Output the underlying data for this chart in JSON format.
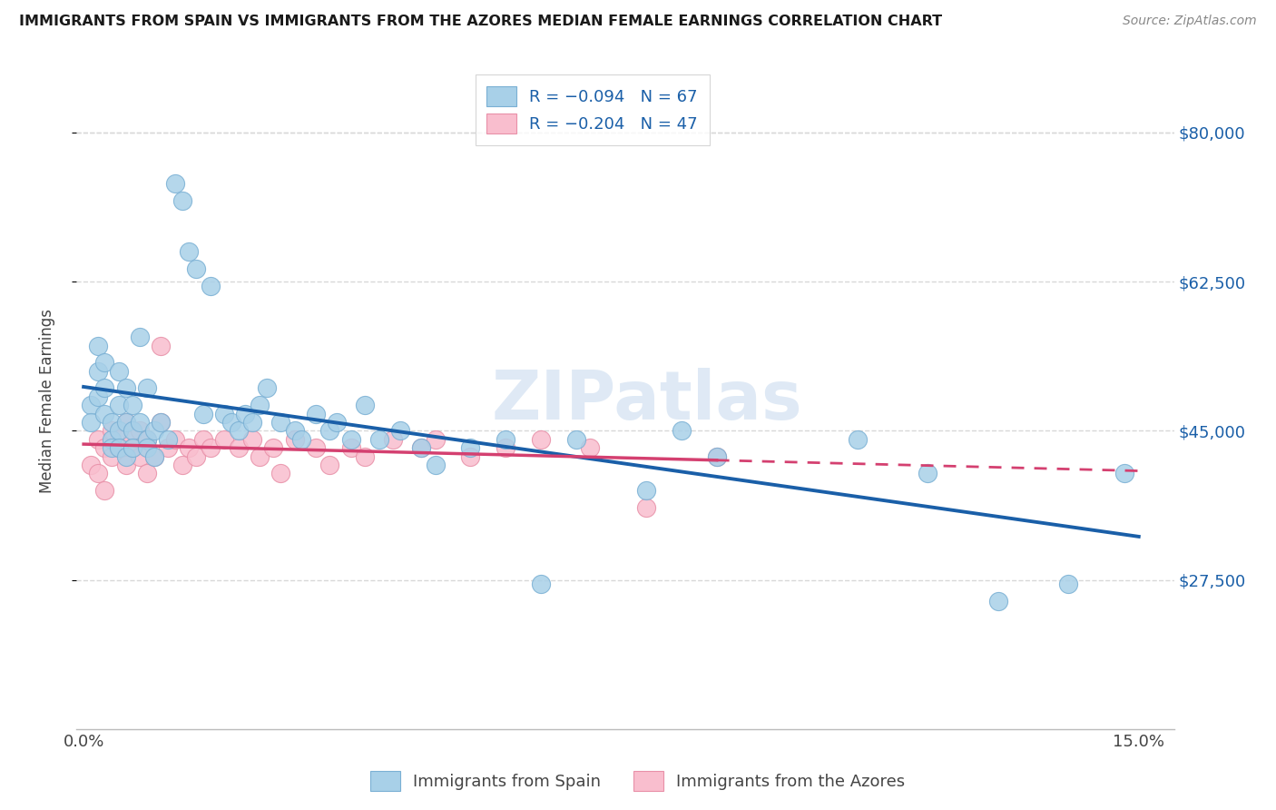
{
  "title": "IMMIGRANTS FROM SPAIN VS IMMIGRANTS FROM THE AZORES MEDIAN FEMALE EARNINGS CORRELATION CHART",
  "source": "Source: ZipAtlas.com",
  "ylabel": "Median Female Earnings",
  "xlim": [
    -0.001,
    0.155
  ],
  "ylim": [
    10000,
    87000
  ],
  "ytick_vals": [
    27500,
    45000,
    62500,
    80000
  ],
  "xtick_vals": [
    0.0,
    0.025,
    0.05,
    0.075,
    0.1,
    0.125,
    0.15
  ],
  "xtick_labels": [
    "0.0%",
    "",
    "",
    "",
    "",
    "",
    "15.0%"
  ],
  "series1_color": "#a8d0e8",
  "series1_edge": "#7ab0d4",
  "series2_color": "#f9bece",
  "series2_edge": "#e890a8",
  "trendline1_color": "#1a5fa8",
  "trendline2_color": "#d44070",
  "legend1_text": "R = −0.094   N = 67",
  "legend2_text": "R = −0.204   N = 47",
  "bottom_legend1": "Immigrants from Spain",
  "bottom_legend2": "Immigrants from the Azores",
  "watermark": "ZIPatlas",
  "grid_color": "#d8d8d8",
  "background_color": "#ffffff",
  "yaxis_label_color": "#1a5fa8",
  "title_color": "#1a1a1a",
  "source_color": "#888888",
  "spain_x": [
    0.001,
    0.001,
    0.002,
    0.002,
    0.002,
    0.003,
    0.003,
    0.003,
    0.004,
    0.004,
    0.004,
    0.005,
    0.005,
    0.005,
    0.005,
    0.006,
    0.006,
    0.006,
    0.007,
    0.007,
    0.007,
    0.008,
    0.008,
    0.009,
    0.009,
    0.009,
    0.01,
    0.01,
    0.011,
    0.012,
    0.013,
    0.014,
    0.015,
    0.016,
    0.017,
    0.018,
    0.02,
    0.021,
    0.022,
    0.023,
    0.024,
    0.025,
    0.026,
    0.028,
    0.03,
    0.031,
    0.033,
    0.035,
    0.036,
    0.038,
    0.04,
    0.042,
    0.045,
    0.048,
    0.05,
    0.055,
    0.06,
    0.065,
    0.07,
    0.08,
    0.085,
    0.09,
    0.11,
    0.12,
    0.13,
    0.14,
    0.148
  ],
  "spain_y": [
    48000,
    46000,
    52000,
    49000,
    55000,
    47000,
    50000,
    53000,
    44000,
    46000,
    43000,
    48000,
    45000,
    52000,
    43000,
    46000,
    50000,
    42000,
    45000,
    48000,
    43000,
    46000,
    56000,
    44000,
    50000,
    43000,
    45000,
    42000,
    46000,
    44000,
    74000,
    72000,
    66000,
    64000,
    47000,
    62000,
    47000,
    46000,
    45000,
    47000,
    46000,
    48000,
    50000,
    46000,
    45000,
    44000,
    47000,
    45000,
    46000,
    44000,
    48000,
    44000,
    45000,
    43000,
    41000,
    43000,
    44000,
    27000,
    44000,
    38000,
    45000,
    42000,
    44000,
    40000,
    25000,
    27000,
    40000
  ],
  "azores_x": [
    0.001,
    0.002,
    0.002,
    0.003,
    0.003,
    0.004,
    0.004,
    0.005,
    0.005,
    0.006,
    0.006,
    0.007,
    0.007,
    0.008,
    0.008,
    0.009,
    0.009,
    0.01,
    0.011,
    0.011,
    0.012,
    0.013,
    0.014,
    0.015,
    0.016,
    0.017,
    0.018,
    0.02,
    0.022,
    0.024,
    0.025,
    0.027,
    0.028,
    0.03,
    0.033,
    0.035,
    0.038,
    0.04,
    0.044,
    0.048,
    0.05,
    0.055,
    0.06,
    0.065,
    0.072,
    0.08,
    0.09
  ],
  "azores_y": [
    41000,
    44000,
    40000,
    43000,
    38000,
    45000,
    42000,
    44000,
    43000,
    46000,
    41000,
    44000,
    43000,
    42000,
    45000,
    40000,
    44000,
    42000,
    46000,
    55000,
    43000,
    44000,
    41000,
    43000,
    42000,
    44000,
    43000,
    44000,
    43000,
    44000,
    42000,
    43000,
    40000,
    44000,
    43000,
    41000,
    43000,
    42000,
    44000,
    43000,
    44000,
    42000,
    43000,
    44000,
    43000,
    36000,
    42000
  ]
}
